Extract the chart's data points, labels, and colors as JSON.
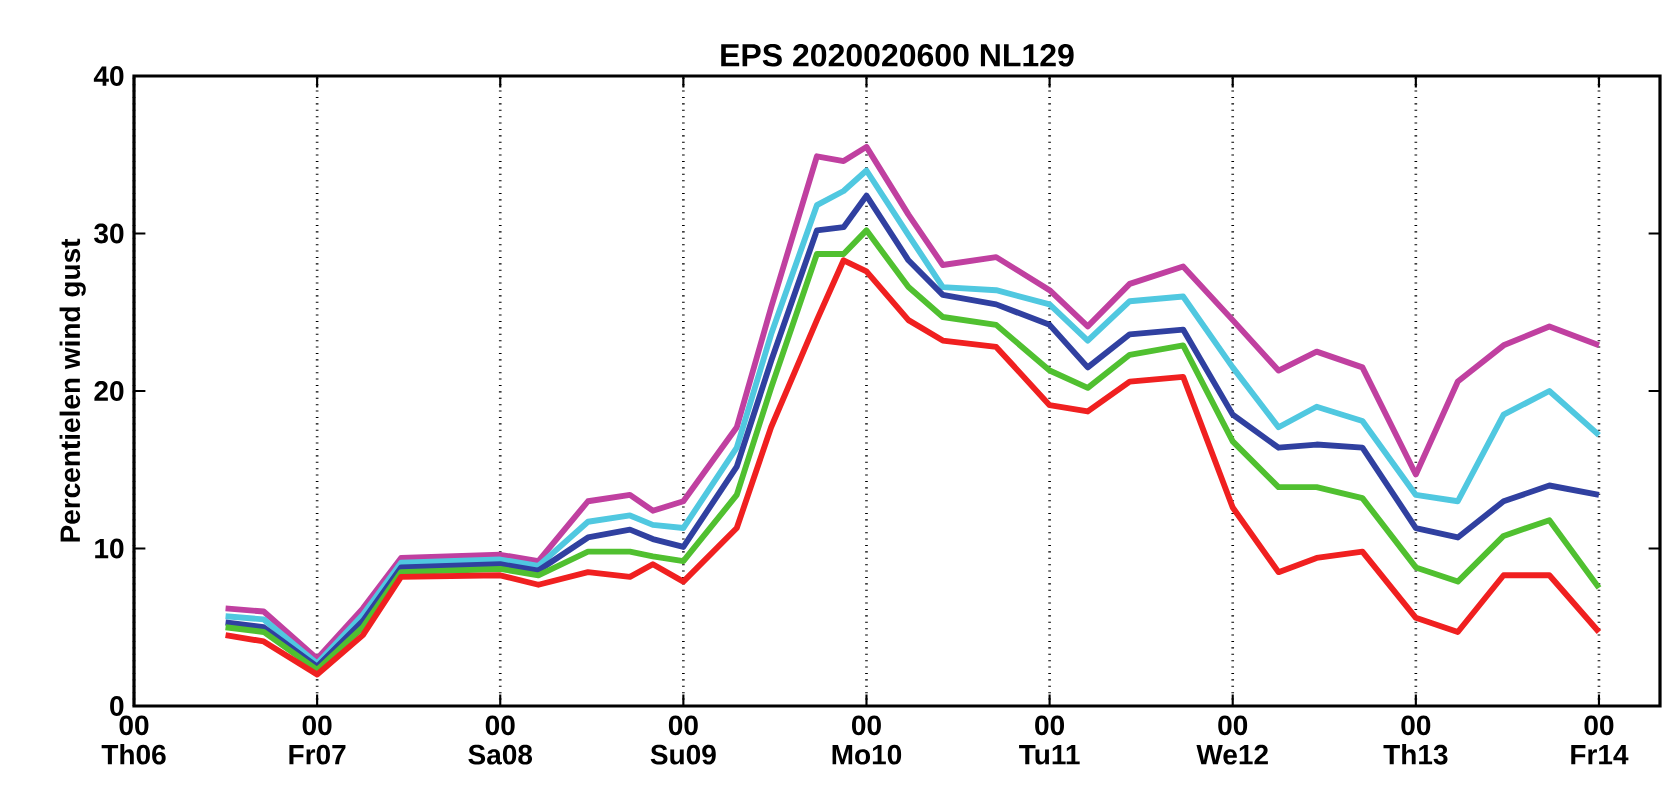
{
  "chart_data": {
    "type": "line",
    "title": "EPS 2020020600 NL129",
    "ylabel": "Percentielen wind gust",
    "x": [
      "2020-02-06T12:00",
      "2020-02-06T17:00",
      "2020-02-07T00:00",
      "2020-02-07T06:00",
      "2020-02-07T11:00",
      "2020-02-08T00:00",
      "2020-02-08T05:00",
      "2020-02-08T11:30",
      "2020-02-08T17:00",
      "2020-02-08T20:00",
      "2020-02-09T00:00",
      "2020-02-09T07:00",
      "2020-02-09T11:30",
      "2020-02-09T17:30",
      "2020-02-09T21:00",
      "2020-02-10T00:00",
      "2020-02-10T05:30",
      "2020-02-10T10:00",
      "2020-02-10T17:00",
      "2020-02-11T00:00",
      "2020-02-11T05:00",
      "2020-02-11T10:30",
      "2020-02-11T17:30",
      "2020-02-12T00:00",
      "2020-02-12T06:00",
      "2020-02-12T11:00",
      "2020-02-12T17:00",
      "2020-02-13T00:00",
      "2020-02-13T05:30",
      "2020-02-13T11:30",
      "2020-02-13T17:30",
      "2020-02-14T00:00"
    ],
    "series": [
      {
        "color": "#c040a0",
        "values": [
          6.2,
          6.0,
          3.0,
          6.2,
          9.4,
          9.6,
          9.2,
          13.0,
          13.4,
          12.4,
          13.0,
          17.7,
          25.3,
          34.9,
          34.6,
          35.5,
          31.2,
          28.0,
          28.5,
          26.4,
          24.1,
          26.8,
          27.9,
          24.5,
          21.3,
          22.5,
          21.5,
          14.7,
          20.6,
          22.9,
          24.1,
          22.9
        ]
      },
      {
        "color": "#50c8e0",
        "values": [
          5.7,
          5.5,
          2.7,
          5.8,
          9.1,
          9.3,
          8.9,
          11.7,
          12.1,
          11.5,
          11.3,
          16.4,
          23.6,
          31.8,
          32.7,
          34.0,
          29.9,
          26.6,
          26.4,
          25.5,
          23.2,
          25.7,
          26.0,
          21.5,
          17.7,
          19.0,
          18.1,
          13.4,
          13.0,
          18.5,
          20.0,
          17.2
        ]
      },
      {
        "color": "#3040a0",
        "values": [
          5.3,
          5.0,
          2.5,
          5.4,
          8.8,
          9.0,
          8.6,
          10.7,
          11.2,
          10.6,
          10.1,
          15.2,
          21.9,
          30.2,
          30.4,
          32.4,
          28.3,
          26.1,
          25.5,
          24.2,
          21.5,
          23.6,
          23.9,
          18.5,
          16.4,
          16.6,
          16.4,
          11.3,
          10.7,
          13.0,
          14.0,
          13.4
        ]
      },
      {
        "color": "#50c030",
        "values": [
          5.0,
          4.7,
          2.3,
          5.0,
          8.5,
          8.7,
          8.3,
          9.8,
          9.8,
          9.5,
          9.2,
          13.4,
          20.2,
          28.7,
          28.7,
          30.2,
          26.6,
          24.7,
          24.2,
          21.3,
          20.2,
          22.3,
          22.9,
          16.8,
          13.9,
          13.9,
          13.2,
          8.8,
          7.9,
          10.8,
          11.8,
          7.5
        ]
      },
      {
        "color": "#f02020",
        "values": [
          4.5,
          4.1,
          2.0,
          4.5,
          8.2,
          8.3,
          7.7,
          8.5,
          8.2,
          9.0,
          7.9,
          11.3,
          17.7,
          24.5,
          28.3,
          27.6,
          24.5,
          23.2,
          22.8,
          19.1,
          18.7,
          20.6,
          20.9,
          12.6,
          8.5,
          9.4,
          9.8,
          5.6,
          4.7,
          8.3,
          8.3,
          4.7
        ]
      }
    ],
    "xlim": [
      "2020-02-06T00:00",
      "2020-02-14T08:00"
    ],
    "ylim": [
      0,
      40
    ],
    "xticks": [
      {
        "value": "2020-02-06T00:00",
        "label": "00 Th06"
      },
      {
        "value": "2020-02-07T00:00",
        "label": "00 Fr07"
      },
      {
        "value": "2020-02-08T00:00",
        "label": "00 Sa08"
      },
      {
        "value": "2020-02-09T00:00",
        "label": "00 Su09"
      },
      {
        "value": "2020-02-10T00:00",
        "label": "00 Mo10"
      },
      {
        "value": "2020-02-11T00:00",
        "label": "00 Tu11"
      },
      {
        "value": "2020-02-12T00:00",
        "label": "00 We12"
      },
      {
        "value": "2020-02-13T00:00",
        "label": "00 Th13"
      },
      {
        "value": "2020-02-14T00:00",
        "label": "00 Fr14"
      }
    ],
    "yticks": [
      0,
      10,
      20,
      30,
      40
    ],
    "grid": "x",
    "marker": "none",
    "line_style": "solid"
  }
}
